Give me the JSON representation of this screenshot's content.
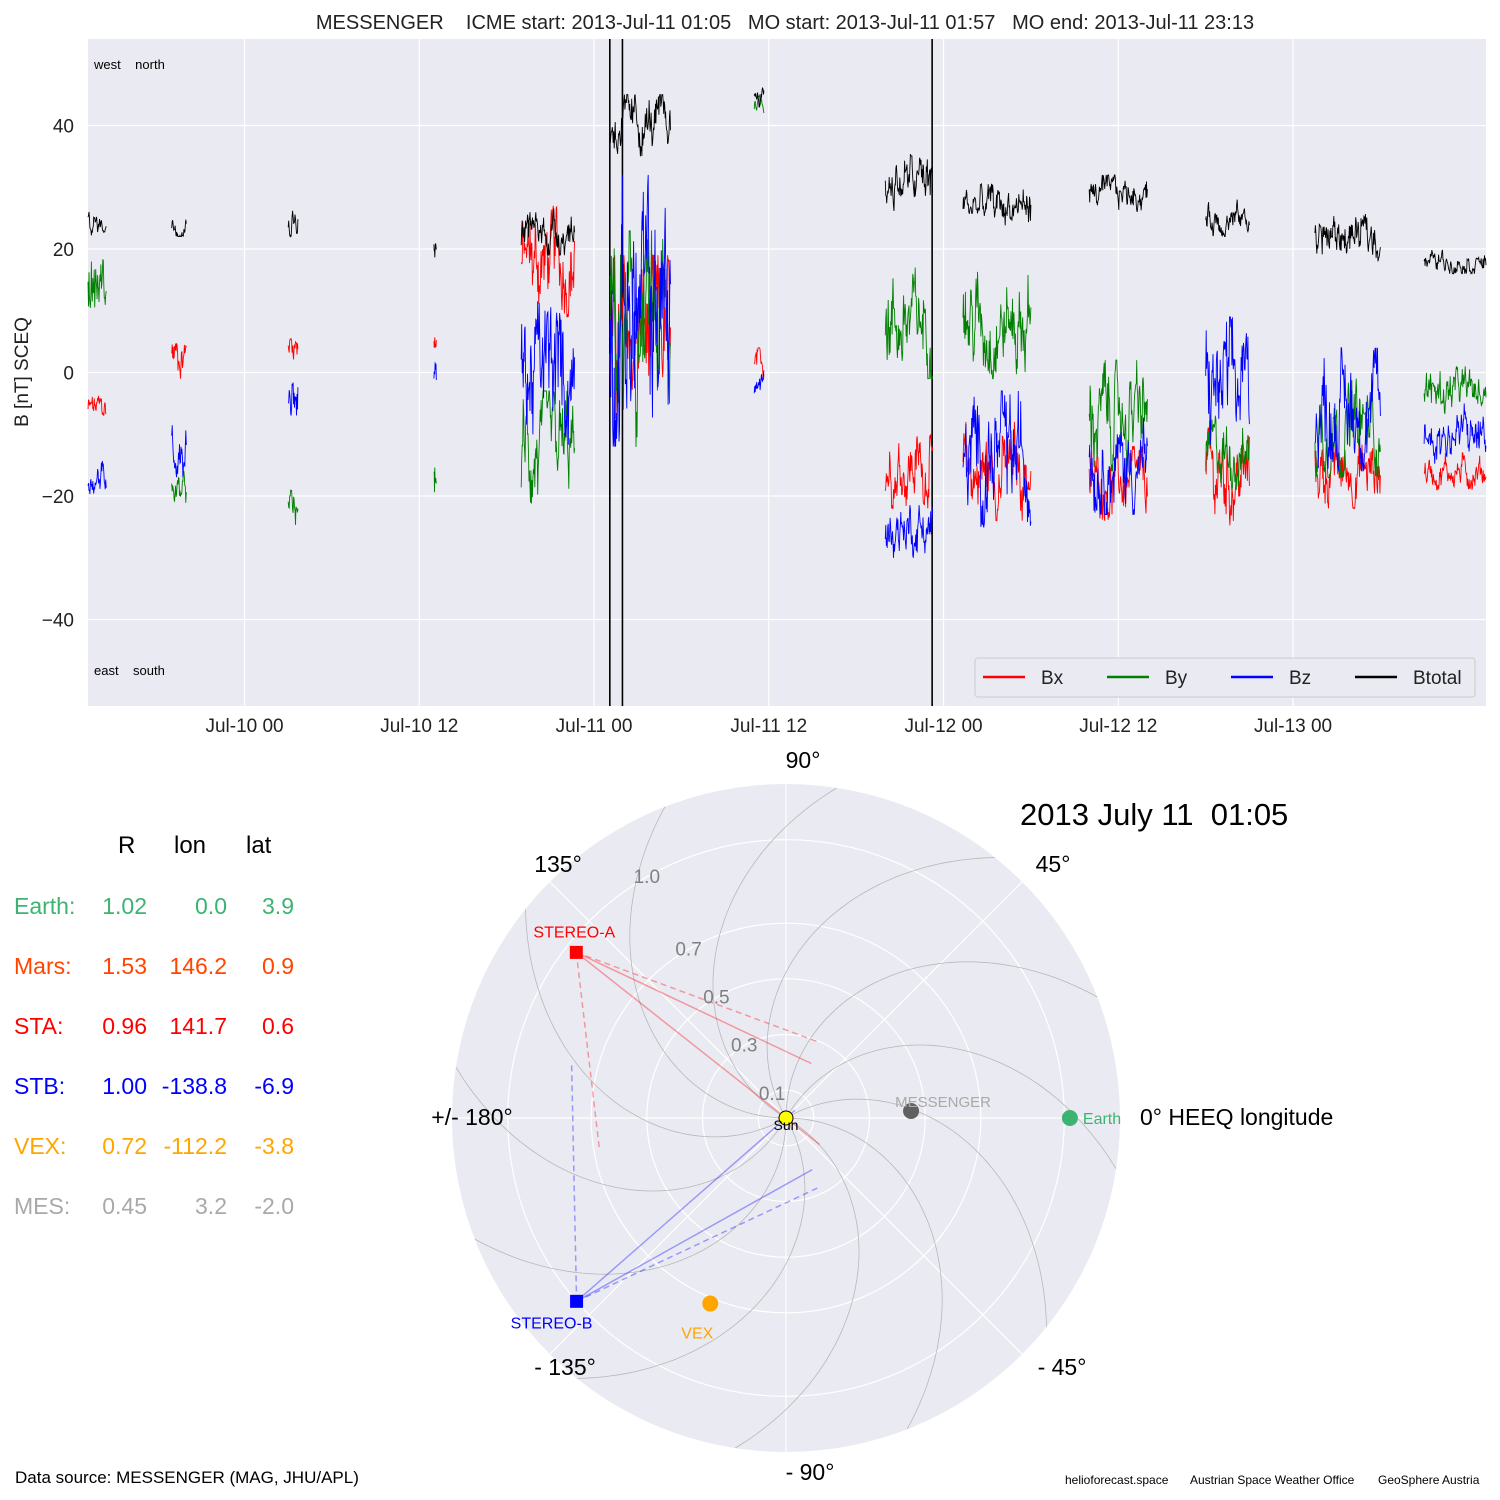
{
  "colors": {
    "bx": "#ff0000",
    "by": "#008000",
    "bz": "#0000ff",
    "btotal": "#000000",
    "panel_bg": "#eaeaf2",
    "earth": "#3cb371",
    "mars": "#ff4500",
    "sta": "#ff0000",
    "stb": "#0000ff",
    "vex": "#ffa500",
    "mes": "#a9a9a9",
    "sun": "#ffff00"
  },
  "chart_data": [
    {
      "type": "line",
      "title": "MESSENGER    ICME start: 2013-Jul-11 01:05   MO start: 2013-Jul-11 01:57   MO end: 2013-Jul-11 23:13",
      "ylabel": "B [nT] SCEQ",
      "xlabel": "",
      "ylim": [
        -54,
        54
      ],
      "xlim": [
        "2013-07-09 13:15",
        "2013-07-13 13:15"
      ],
      "yticks": [
        -40,
        -20,
        0,
        20,
        40
      ],
      "ytick_labels": [
        "−40",
        "−20",
        "0",
        "20",
        "40"
      ],
      "xticks": [
        "2013-07-10 00:00",
        "2013-07-10 12:00",
        "2013-07-11 00:00",
        "2013-07-11 12:00",
        "2013-07-12 00:00",
        "2013-07-12 12:00",
        "2013-07-13 00:00"
      ],
      "xtick_labels": [
        "Jul-10 00",
        "Jul-10 12",
        "Jul-11 00",
        "Jul-11 12",
        "Jul-12 00",
        "Jul-12 12",
        "Jul-13 00"
      ],
      "corner_labels": {
        "top": "west    north",
        "bottom": "east    south"
      },
      "grid": true,
      "legend_position": "bottom-right",
      "event_lines": [
        "2013-07-11 01:05",
        "2013-07-11 01:57",
        "2013-07-11 23:13"
      ],
      "series": [
        {
          "name": "Bx",
          "color_key": "bx",
          "segments": [
            {
              "start": "2013-07-09 13:15",
              "end": "2013-07-09 14:30",
              "mean": -6,
              "amp": 3
            },
            {
              "start": "2013-07-09 19:00",
              "end": "2013-07-09 20:00",
              "mean": 3,
              "amp": 4
            },
            {
              "start": "2013-07-10 03:00",
              "end": "2013-07-10 03:40",
              "mean": 5,
              "amp": 3
            },
            {
              "start": "2013-07-10 13:00",
              "end": "2013-07-10 13:10",
              "mean": 5,
              "amp": 3
            },
            {
              "start": "2013-07-10 19:00",
              "end": "2013-07-10 22:40",
              "mean": 18,
              "amp": 9
            },
            {
              "start": "2013-07-11 01:05",
              "end": "2013-07-11 05:15",
              "mean": 5,
              "amp": 14
            },
            {
              "start": "2013-07-11 11:00",
              "end": "2013-07-11 11:40",
              "mean": 1,
              "amp": 3
            },
            {
              "start": "2013-07-11 20:00",
              "end": "2013-07-11 23:15",
              "mean": -15,
              "amp": 7
            },
            {
              "start": "2013-07-12 01:20",
              "end": "2013-07-12 06:00",
              "mean": -16,
              "amp": 8
            },
            {
              "start": "2013-07-12 10:00",
              "end": "2013-07-12 14:00",
              "mean": -18,
              "amp": 6
            },
            {
              "start": "2013-07-12 18:00",
              "end": "2013-07-12 21:00",
              "mean": -17,
              "amp": 8
            },
            {
              "start": "2013-07-13 01:30",
              "end": "2013-07-13 06:00",
              "mean": -16,
              "amp": 6
            },
            {
              "start": "2013-07-13 09:00",
              "end": "2013-07-13 13:15",
              "mean": -16,
              "amp": 3
            }
          ]
        },
        {
          "name": "By",
          "color_key": "by",
          "segments": [
            {
              "start": "2013-07-09 13:15",
              "end": "2013-07-09 14:30",
              "mean": 14,
              "amp": 7
            },
            {
              "start": "2013-07-09 19:00",
              "end": "2013-07-09 20:00",
              "mean": -19,
              "amp": 3
            },
            {
              "start": "2013-07-10 03:00",
              "end": "2013-07-10 03:40",
              "mean": -23,
              "amp": 4
            },
            {
              "start": "2013-07-10 13:00",
              "end": "2013-07-10 13:10",
              "mean": -17,
              "amp": 4
            },
            {
              "start": "2013-07-10 19:00",
              "end": "2013-07-10 22:40",
              "mean": -13,
              "amp": 10
            },
            {
              "start": "2013-07-11 01:05",
              "end": "2013-07-11 05:15",
              "mean": 5,
              "amp": 18
            },
            {
              "start": "2013-07-11 11:00",
              "end": "2013-07-11 11:40",
              "mean": 44,
              "amp": 2
            },
            {
              "start": "2013-07-11 20:00",
              "end": "2013-07-11 23:15",
              "mean": 8,
              "amp": 9
            },
            {
              "start": "2013-07-12 01:20",
              "end": "2013-07-12 06:00",
              "mean": 8,
              "amp": 9
            },
            {
              "start": "2013-07-12 10:00",
              "end": "2013-07-12 14:00",
              "mean": -7,
              "amp": 9
            },
            {
              "start": "2013-07-12 18:00",
              "end": "2013-07-12 21:00",
              "mean": -13,
              "amp": 6
            },
            {
              "start": "2013-07-13 01:30",
              "end": "2013-07-13 06:00",
              "mean": -9,
              "amp": 8
            },
            {
              "start": "2013-07-13 09:00",
              "end": "2013-07-13 13:15",
              "mean": -3,
              "amp": 4
            }
          ]
        },
        {
          "name": "Bz",
          "color_key": "bz",
          "segments": [
            {
              "start": "2013-07-09 13:15",
              "end": "2013-07-09 14:30",
              "mean": -17,
              "amp": 3
            },
            {
              "start": "2013-07-09 19:00",
              "end": "2013-07-09 20:00",
              "mean": -12,
              "amp": 5
            },
            {
              "start": "2013-07-10 03:00",
              "end": "2013-07-10 03:40",
              "mean": -3,
              "amp": 5
            },
            {
              "start": "2013-07-10 13:00",
              "end": "2013-07-10 13:10",
              "mean": -1,
              "amp": 5
            },
            {
              "start": "2013-07-10 19:00",
              "end": "2013-07-10 22:40",
              "mean": 0,
              "amp": 13
            },
            {
              "start": "2013-07-11 01:05",
              "end": "2013-07-11 05:15",
              "mean": 10,
              "amp": 22
            },
            {
              "start": "2013-07-11 11:00",
              "end": "2013-07-11 11:40",
              "mean": -2,
              "amp": 3
            },
            {
              "start": "2013-07-11 20:00",
              "end": "2013-07-11 23:15",
              "mean": -25,
              "amp": 5
            },
            {
              "start": "2013-07-12 01:20",
              "end": "2013-07-12 06:00",
              "mean": -14,
              "amp": 11
            },
            {
              "start": "2013-07-12 10:00",
              "end": "2013-07-12 14:00",
              "mean": -15,
              "amp": 8
            },
            {
              "start": "2013-07-12 18:00",
              "end": "2013-07-12 21:00",
              "mean": -3,
              "amp": 12
            },
            {
              "start": "2013-07-13 01:30",
              "end": "2013-07-13 06:00",
              "mean": -6,
              "amp": 10
            },
            {
              "start": "2013-07-13 09:00",
              "end": "2013-07-13 13:15",
              "mean": -10,
              "amp": 5
            }
          ]
        },
        {
          "name": "Btotal",
          "color_key": "btotal",
          "segments": [
            {
              "start": "2013-07-09 13:15",
              "end": "2013-07-09 14:30",
              "mean": 24,
              "amp": 2
            },
            {
              "start": "2013-07-09 19:00",
              "end": "2013-07-09 20:00",
              "mean": 24,
              "amp": 2
            },
            {
              "start": "2013-07-10 03:00",
              "end": "2013-07-10 03:40",
              "mean": 25,
              "amp": 3
            },
            {
              "start": "2013-07-10 13:00",
              "end": "2013-07-10 13:10",
              "mean": 20,
              "amp": 2
            },
            {
              "start": "2013-07-10 19:00",
              "end": "2013-07-10 22:40",
              "mean": 23,
              "amp": 4
            },
            {
              "start": "2013-07-11 01:05",
              "end": "2013-07-11 05:15",
              "mean": 40,
              "amp": 5
            },
            {
              "start": "2013-07-11 11:00",
              "end": "2013-07-11 11:40",
              "mean": 45,
              "amp": 2
            },
            {
              "start": "2013-07-11 20:00",
              "end": "2013-07-11 23:15",
              "mean": 31,
              "amp": 5
            },
            {
              "start": "2013-07-12 01:20",
              "end": "2013-07-12 06:00",
              "mean": 27,
              "amp": 4
            },
            {
              "start": "2013-07-12 10:00",
              "end": "2013-07-12 14:00",
              "mean": 29,
              "amp": 3
            },
            {
              "start": "2013-07-12 18:00",
              "end": "2013-07-12 21:00",
              "mean": 25,
              "amp": 3
            },
            {
              "start": "2013-07-13 01:30",
              "end": "2013-07-13 06:00",
              "mean": 22,
              "amp": 4
            },
            {
              "start": "2013-07-13 09:00",
              "end": "2013-07-13 13:15",
              "mean": 18,
              "amp": 2
            }
          ]
        }
      ]
    },
    {
      "type": "scatter",
      "projection": "polar",
      "title": "2013 July 11  01:05",
      "angle_labels": [
        "0° HEEQ longitude",
        "45°",
        "90°",
        "135°",
        "+/- 180°",
        "- 135°",
        "- 90°",
        "- 45°"
      ],
      "angle_values": [
        0,
        45,
        90,
        135,
        180,
        -135,
        -90,
        -45
      ],
      "radial_ticks": [
        0.1,
        0.3,
        0.5,
        0.7,
        1.0
      ],
      "radial_tick_labels": [
        "0.1",
        "0.3",
        "0.5",
        "0.7",
        "1.0"
      ],
      "rlim": [
        0,
        1.2
      ],
      "objects": [
        {
          "name": "Sun",
          "r": 0,
          "lon": 0,
          "color_key": "sun",
          "marker": "circle"
        },
        {
          "name": "Earth",
          "r": 1.02,
          "lon": 0.0,
          "color_key": "earth",
          "marker": "circle"
        },
        {
          "name": "MESSENGER",
          "r": 0.45,
          "lon": 3.2,
          "color_key": "mes",
          "marker": "circle"
        },
        {
          "name": "VEX",
          "r": 0.72,
          "lon": -112.2,
          "color_key": "vex",
          "marker": "circle"
        },
        {
          "name": "STEREO-A",
          "r": 0.96,
          "lon": 141.7,
          "color_key": "sta",
          "marker": "square"
        },
        {
          "name": "STEREO-B",
          "r": 1.0,
          "lon": -138.8,
          "color_key": "stb",
          "marker": "square"
        }
      ]
    }
  ],
  "positions": {
    "headers": [
      "R",
      "lon",
      "lat"
    ],
    "rows": [
      {
        "label": "Earth:",
        "r": "1.02",
        "lon": "0.0",
        "lat": "3.9",
        "color_key": "earth"
      },
      {
        "label": "Mars:",
        "r": "1.53",
        "lon": "146.2",
        "lat": "0.9",
        "color_key": "mars"
      },
      {
        "label": "STA:",
        "r": "0.96",
        "lon": "141.7",
        "lat": "0.6",
        "color_key": "sta"
      },
      {
        "label": "STB:",
        "r": "1.00",
        "lon": "-138.8",
        "lat": "-6.9",
        "color_key": "stb"
      },
      {
        "label": "VEX:",
        "r": "0.72",
        "lon": "-112.2",
        "lat": "-3.8",
        "color_key": "vex"
      },
      {
        "label": "MES:",
        "r": "0.45",
        "lon": "3.2",
        "lat": "-2.0",
        "color_key": "mes"
      }
    ]
  },
  "footer": {
    "data_source": "Data source: MESSENGER (MAG, JHU/APL)",
    "credit_1": "helioforecast.space",
    "credit_2": "Austrian Space Weather Office",
    "credit_3": "GeoSphere Austria"
  }
}
